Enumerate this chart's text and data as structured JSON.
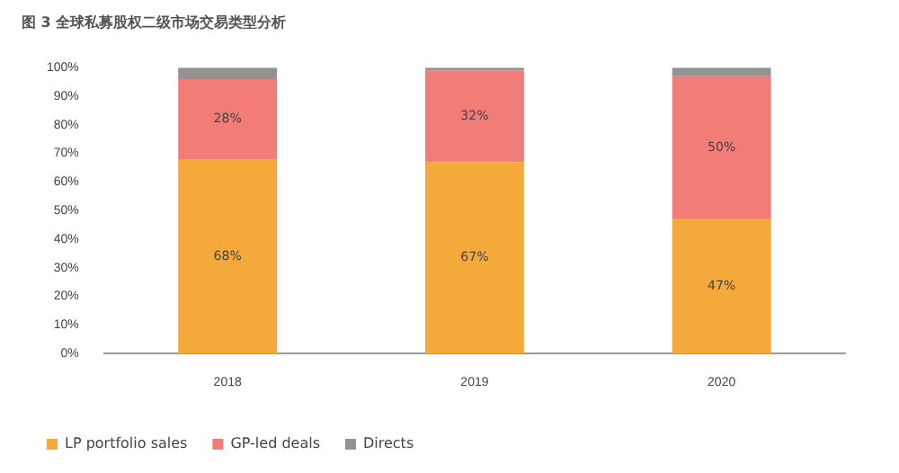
{
  "chart_data": {
    "type": "bar",
    "title": "图 3 全球私募股权二级市场交易类型分析",
    "categories": [
      "2018",
      "2019",
      "2020"
    ],
    "stacked": true,
    "series": [
      {
        "name": "LP portfolio sales",
        "color": "#f5a93a",
        "values": [
          68,
          67,
          47
        ],
        "value_labels": [
          "68%",
          "67%",
          "47%"
        ]
      },
      {
        "name": "GP-led deals",
        "color": "#f17c78",
        "values": [
          28,
          32,
          50
        ],
        "value_labels": [
          "28%",
          "32%",
          "50%"
        ]
      },
      {
        "name": "Directs",
        "color": "#939393",
        "values": [
          4,
          1,
          3
        ]
      }
    ],
    "ylim": [
      0,
      100
    ],
    "yticks": [
      {
        "value": 0,
        "label": "0%"
      },
      {
        "value": 10,
        "label": "10%"
      },
      {
        "value": 20,
        "label": "20%"
      },
      {
        "value": 30,
        "label": "30%"
      },
      {
        "value": 40,
        "label": "40%"
      },
      {
        "value": 50,
        "label": "50%"
      },
      {
        "value": 60,
        "label": "60%"
      },
      {
        "value": 70,
        "label": "70%"
      },
      {
        "value": 80,
        "label": "80%"
      },
      {
        "value": 90,
        "label": "90%"
      },
      {
        "value": 100,
        "label": "100%"
      }
    ],
    "grid": false,
    "legend": "bottom left"
  }
}
